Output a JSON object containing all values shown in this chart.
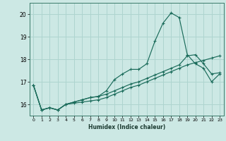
{
  "xlabel": "Humidex (Indice chaleur)",
  "ylabel": "",
  "xlim": [
    -0.5,
    23.5
  ],
  "ylim": [
    15.5,
    20.5
  ],
  "xticks": [
    0,
    1,
    2,
    3,
    4,
    5,
    6,
    7,
    8,
    9,
    10,
    11,
    12,
    13,
    14,
    15,
    16,
    17,
    18,
    19,
    20,
    21,
    22,
    23
  ],
  "yticks": [
    16,
    17,
    18,
    19,
    20
  ],
  "background_color": "#cce8e4",
  "grid_color": "#aed4cf",
  "line_color": "#1a6b5a",
  "line1_x": [
    0,
    1,
    2,
    3,
    4,
    5,
    6,
    7,
    8,
    9,
    10,
    11,
    12,
    13,
    14,
    15,
    16,
    17,
    18,
    19,
    20,
    21,
    22,
    23
  ],
  "line1_y": [
    16.85,
    15.75,
    15.85,
    15.75,
    16.0,
    16.1,
    16.2,
    16.3,
    16.35,
    16.6,
    17.1,
    17.35,
    17.55,
    17.55,
    17.8,
    18.8,
    19.6,
    20.05,
    19.85,
    18.2,
    17.8,
    17.6,
    17.0,
    17.35
  ],
  "line2_x": [
    0,
    1,
    2,
    3,
    4,
    5,
    6,
    7,
    8,
    9,
    10,
    11,
    12,
    13,
    14,
    15,
    16,
    17,
    18,
    19,
    20,
    21,
    22,
    23
  ],
  "line2_y": [
    16.85,
    15.75,
    15.85,
    15.75,
    16.0,
    16.05,
    16.1,
    16.15,
    16.2,
    16.3,
    16.45,
    16.6,
    16.75,
    16.85,
    17.0,
    17.15,
    17.3,
    17.45,
    17.6,
    17.75,
    17.85,
    17.95,
    18.05,
    18.15
  ],
  "line3_x": [
    0,
    1,
    2,
    3,
    4,
    5,
    6,
    7,
    8,
    9,
    10,
    11,
    12,
    13,
    14,
    15,
    16,
    17,
    18,
    19,
    20,
    21,
    22,
    23
  ],
  "line3_y": [
    16.85,
    15.75,
    15.85,
    15.75,
    16.0,
    16.1,
    16.2,
    16.3,
    16.35,
    16.45,
    16.6,
    16.75,
    16.9,
    17.0,
    17.15,
    17.3,
    17.45,
    17.6,
    17.75,
    18.15,
    18.2,
    17.8,
    17.35,
    17.4
  ]
}
